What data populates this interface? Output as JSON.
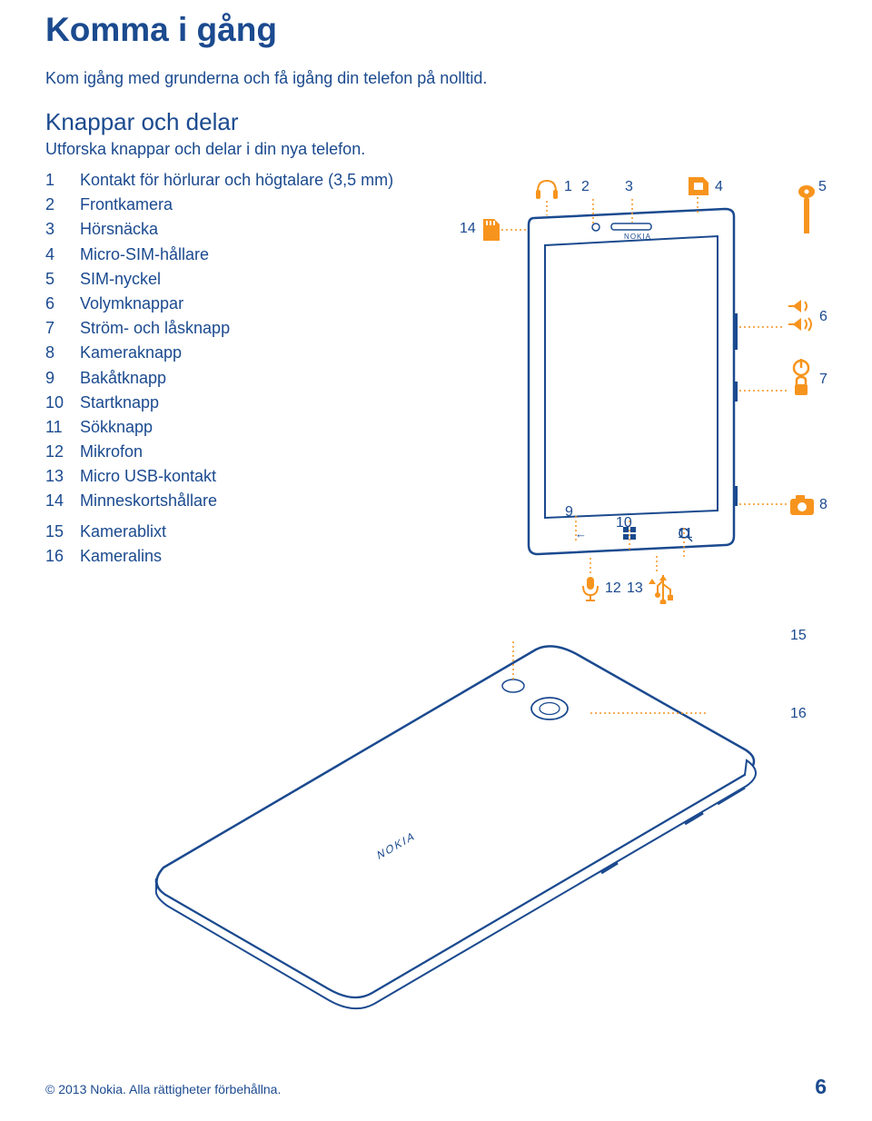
{
  "colors": {
    "text_primary": "#1b4a8f",
    "accent": "#f7941d",
    "background": "#ffffff"
  },
  "typography": {
    "title_fontsize": 37,
    "section_fontsize": 26,
    "body_fontsize": 18,
    "label_fontsize": 16,
    "footer_fontsize": 14,
    "pagenum_fontsize": 23
  },
  "title": "Komma i gång",
  "intro": "Kom igång med grunderna och få igång din telefon på nolltid.",
  "section_heading": "Knappar och delar",
  "section_intro": "Utforska knappar och delar i din nya telefon.",
  "parts_group1": [
    {
      "n": "1",
      "label": "Kontakt för hörlurar och högtalare (3,5 mm)"
    },
    {
      "n": "2",
      "label": "Frontkamera"
    },
    {
      "n": "3",
      "label": "Hörsnäcka"
    },
    {
      "n": "4",
      "label": "Micro-SIM-hållare"
    },
    {
      "n": "5",
      "label": "SIM-nyckel"
    },
    {
      "n": "6",
      "label": "Volymknappar"
    },
    {
      "n": "7",
      "label": "Ström- och låsknapp"
    },
    {
      "n": "8",
      "label": "Kameraknapp"
    },
    {
      "n": "9",
      "label": "Bakåtknapp"
    },
    {
      "n": "10",
      "label": "Startknapp"
    },
    {
      "n": "11",
      "label": "Sökknapp"
    },
    {
      "n": "12",
      "label": "Mikrofon"
    },
    {
      "n": "13",
      "label": "Micro USB-kontakt"
    },
    {
      "n": "14",
      "label": "Minneskortshållare"
    }
  ],
  "parts_group2": [
    {
      "n": "15",
      "label": "Kamerablixt"
    },
    {
      "n": "16",
      "label": "Kameralins"
    }
  ],
  "diagram_front": {
    "callouts": [
      "1",
      "2",
      "3",
      "4",
      "5",
      "6",
      "7",
      "8",
      "9",
      "10",
      "11",
      "12",
      "13",
      "14"
    ],
    "brand": "NOKIA"
  },
  "diagram_back": {
    "callouts": [
      "15",
      "16"
    ],
    "brand": "NOKIA"
  },
  "footer": {
    "copyright": "© 2013 Nokia. Alla rättigheter förbehållna.",
    "page": "6"
  }
}
